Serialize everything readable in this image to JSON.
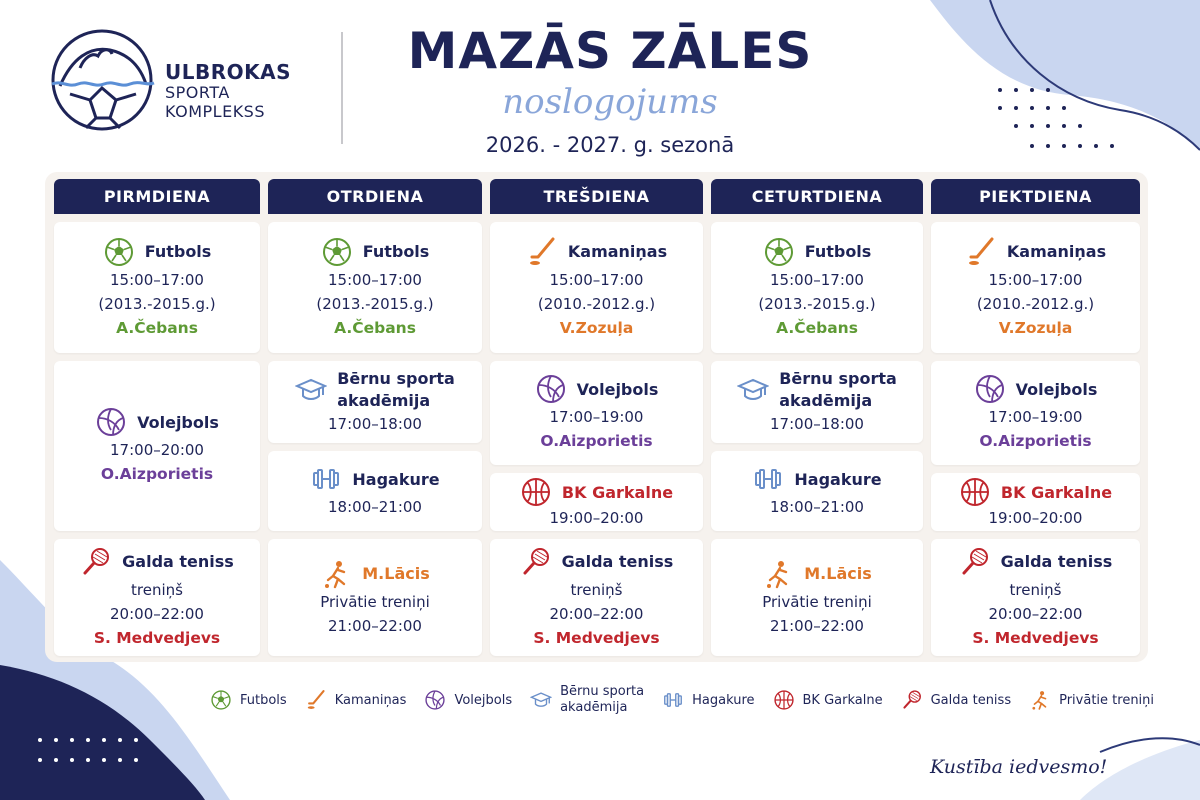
{
  "brand": {
    "line1": "ULBROKAS",
    "line2": "SPORTA",
    "line3": "KOMPLEKSS"
  },
  "header": {
    "title": "MAZĀS ZĀLES",
    "subtitle": "noslogojums",
    "season": "2026. - 2027. g. sezonā"
  },
  "days": [
    "PIRMDIENA",
    "OTRDIENA",
    "TREŠDIENA",
    "CETURTDIENA",
    "PIEKTDIENA"
  ],
  "schedule": {
    "mon": {
      "s1": {
        "name": "Futbols",
        "time": "15:00–17:00",
        "age": "(2013.-2015.g.)",
        "coach": "A.Čebans"
      },
      "s2": {
        "name": "Volejbols",
        "time": "17:00–20:00",
        "coach": "O.Aizporietis"
      },
      "s3": {
        "name": "Galda teniss",
        "sub": "treniņš",
        "time": "20:00–22:00",
        "coach": "S. Medvedjevs"
      }
    },
    "tue": {
      "s1": {
        "name": "Futbols",
        "time": "15:00–17:00",
        "age": "(2013.-2015.g.)",
        "coach": "A.Čebans"
      },
      "s2": {
        "name_l1": "Bērnu sporta",
        "name_l2": "akadēmija",
        "time": "17:00–18:00"
      },
      "s3": {
        "name": "Hagakure",
        "time": "18:00–21:00"
      },
      "s4": {
        "coach": "M.Lācis",
        "sub": "Privātie treniņi",
        "time": "21:00–22:00"
      }
    },
    "wed": {
      "s1": {
        "name": "Kamaniņas",
        "time": "15:00–17:00",
        "age": "(2010.-2012.g.)",
        "coach": "V.Zozuļa"
      },
      "s2": {
        "name": "Volejbols",
        "time": "17:00–19:00",
        "coach": "O.Aizporietis"
      },
      "s3": {
        "name": "BK Garkalne",
        "time": "19:00–20:00"
      },
      "s4": {
        "name": "Galda teniss",
        "sub": "treniņš",
        "time": "20:00–22:00",
        "coach": "S. Medvedjevs"
      }
    },
    "thu": {
      "s1": {
        "name": "Futbols",
        "time": "15:00–17:00",
        "age": "(2013.-2015.g.)",
        "coach": "A.Čebans"
      },
      "s2": {
        "name_l1": "Bērnu sporta",
        "name_l2": "akadēmija",
        "time": "17:00–18:00"
      },
      "s3": {
        "name": "Hagakure",
        "time": "18:00–21:00"
      },
      "s4": {
        "coach": "M.Lācis",
        "sub": "Privātie treniņi",
        "time": "21:00–22:00"
      }
    },
    "fri": {
      "s1": {
        "name": "Kamaniņas",
        "time": "15:00–17:00",
        "age": "(2010.-2012.g.)",
        "coach": "V.Zozuļa"
      },
      "s2": {
        "name": "Volejbols",
        "time": "17:00–19:00",
        "coach": "O.Aizporietis"
      },
      "s3": {
        "name": "BK Garkalne",
        "time": "19:00–20:00"
      },
      "s4": {
        "name": "Galda teniss",
        "sub": "treniņš",
        "time": "20:00–22:00",
        "coach": "S. Medvedjevs"
      }
    }
  },
  "legend": {
    "futbols": "Futbols",
    "kamaninas": "Kamaniņas",
    "volejbols": "Volejbols",
    "akademija_l1": "Bērnu sporta",
    "akademija_l2": "akadēmija",
    "hagakure": "Hagakure",
    "garkalne": "BK Garkalne",
    "teniss": "Galda teniss",
    "privatie": "Privātie treniņi"
  },
  "tagline": "Kustība iedvesmo!",
  "icons": {
    "futbols": "soccer-ball-icon",
    "kamaninas": "hockey-stick-icon",
    "volejbols": "volleyball-icon",
    "akademija": "graduation-cap-icon",
    "hagakure": "dumbbell-icon",
    "garkalne": "basketball-icon",
    "teniss": "table-tennis-icon",
    "privatie": "player-icon"
  },
  "colors": {
    "navy": "#1e2457",
    "green": "#5e9a35",
    "orange": "#e0782a",
    "purple": "#6b3f99",
    "red": "#c0262d",
    "lightblue": "#8aa6d9"
  }
}
